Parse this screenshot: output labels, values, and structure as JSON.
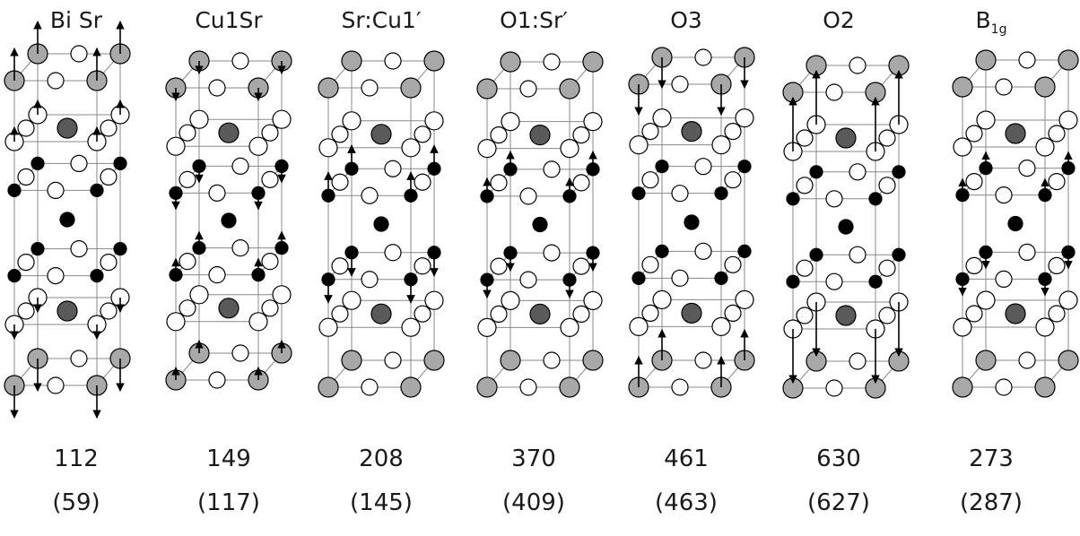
{
  "modes": [
    {
      "title": "Bi Sr",
      "frequency": "112",
      "frequency_paren": "(59)",
      "arrows": "bisr"
    },
    {
      "title": "Cu1Sr",
      "frequency": "149",
      "frequency_paren": "(117)",
      "arrows": "cu1sr"
    },
    {
      "title": "Sr:Cu1′",
      "frequency": "208",
      "frequency_paren": "(145)",
      "arrows": "srcu1"
    },
    {
      "title": "O1:Sr′",
      "frequency": "370",
      "frequency_paren": "(409)",
      "arrows": "o1sr"
    },
    {
      "title": "O3",
      "frequency": "461",
      "frequency_paren": "(463)",
      "arrows": "o3"
    },
    {
      "title": "O2",
      "frequency": "630",
      "frequency_paren": "(627)",
      "arrows": "o2"
    },
    {
      "title_main": "B",
      "title_sub": "1g",
      "frequency": "273",
      "frequency_paren": "(287)",
      "arrows": "b1g"
    }
  ],
  "colors": {
    "gray_atom": "#a8a8a8",
    "dark_atom": "#5a5a5a",
    "black_atom": "#000000",
    "white_atom": "#ffffff",
    "frame": "#888888"
  }
}
